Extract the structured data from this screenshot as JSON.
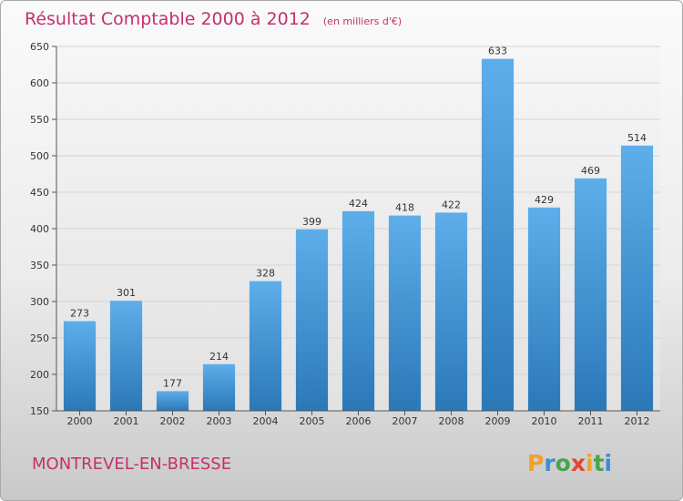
{
  "chart_data": {
    "type": "bar",
    "title": "Résultat Comptable 2000 à 2012",
    "subtitle": "(en milliers d'€)",
    "categories": [
      "2000",
      "2001",
      "2002",
      "2003",
      "2004",
      "2005",
      "2006",
      "2007",
      "2008",
      "2009",
      "2010",
      "2011",
      "2012"
    ],
    "values": [
      273,
      301,
      177,
      214,
      328,
      399,
      424,
      418,
      422,
      633,
      429,
      469,
      514
    ],
    "xlabel": "",
    "ylabel": "",
    "ylim": [
      150,
      650
    ],
    "yticks": [
      150,
      200,
      250,
      300,
      350,
      400,
      450,
      500,
      550,
      600,
      650
    ],
    "grid": true,
    "legend": "none",
    "colors": {
      "bar_top": "#5daeea",
      "bar_bottom": "#2b78b8",
      "accent": "#c3306e"
    }
  },
  "footer": {
    "place": "MONTREVEL-EN-BRESSE",
    "logo": "Proxiti"
  }
}
